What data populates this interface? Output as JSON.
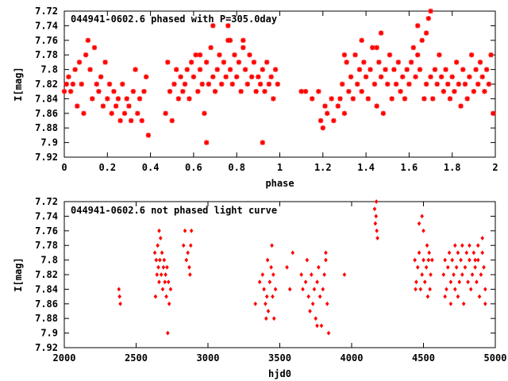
{
  "chart_data": [
    {
      "type": "scatter",
      "title": "044941-0602.6 phased with P=305.0day",
      "xlabel": "phase",
      "ylabel": "I[mag]",
      "xlim": [
        0,
        2
      ],
      "ylim": [
        7.72,
        7.92
      ],
      "y_inverted": true,
      "grid": false,
      "marker": "asterisk",
      "color": "#ff0000",
      "x_ticks": [
        0,
        0.2,
        0.4,
        0.6,
        0.8,
        1,
        1.2,
        1.4,
        1.6,
        1.8,
        2
      ],
      "x_tick_labels": [
        "0",
        "0.2",
        "0.4",
        "0.6",
        "0.8",
        "1",
        "1.2",
        "1.4",
        "1.6",
        "1.8",
        "2"
      ],
      "y_ticks": [
        7.72,
        7.74,
        7.76,
        7.78,
        7.8,
        7.82,
        7.84,
        7.86,
        7.88,
        7.9,
        7.92
      ],
      "y_tick_labels": [
        "7.72",
        "7.74",
        "7.76",
        "7.78",
        "7.8",
        "7.82",
        "7.84",
        "7.86",
        "7.88",
        "7.9",
        "7.92"
      ],
      "points": [
        [
          0.0,
          7.83
        ],
        [
          0.01,
          7.82
        ],
        [
          0.02,
          7.81
        ],
        [
          0.03,
          7.83
        ],
        [
          0.04,
          7.82
        ],
        [
          0.05,
          7.8
        ],
        [
          0.06,
          7.85
        ],
        [
          0.07,
          7.79
        ],
        [
          0.08,
          7.82
        ],
        [
          0.09,
          7.86
        ],
        [
          0.1,
          7.78
        ],
        [
          0.11,
          7.76
        ],
        [
          0.12,
          7.8
        ],
        [
          0.13,
          7.84
        ],
        [
          0.14,
          7.77
        ],
        [
          0.15,
          7.82
        ],
        [
          0.16,
          7.83
        ],
        [
          0.17,
          7.81
        ],
        [
          0.18,
          7.85
        ],
        [
          0.19,
          7.79
        ],
        [
          0.2,
          7.84
        ],
        [
          0.21,
          7.82
        ],
        [
          0.22,
          7.86
        ],
        [
          0.23,
          7.83
        ],
        [
          0.24,
          7.85
        ],
        [
          0.25,
          7.84
        ],
        [
          0.26,
          7.87
        ],
        [
          0.27,
          7.82
        ],
        [
          0.28,
          7.86
        ],
        [
          0.29,
          7.84
        ],
        [
          0.3,
          7.85
        ],
        [
          0.31,
          7.87
        ],
        [
          0.32,
          7.83
        ],
        [
          0.33,
          7.8
        ],
        [
          0.34,
          7.86
        ],
        [
          0.35,
          7.84
        ],
        [
          0.36,
          7.87
        ],
        [
          0.37,
          7.83
        ],
        [
          0.38,
          7.81
        ],
        [
          0.39,
          7.89
        ],
        [
          0.47,
          7.86
        ],
        [
          0.48,
          7.79
        ],
        [
          0.49,
          7.83
        ],
        [
          0.5,
          7.87
        ],
        [
          0.51,
          7.82
        ],
        [
          0.52,
          7.8
        ],
        [
          0.53,
          7.84
        ],
        [
          0.54,
          7.81
        ],
        [
          0.55,
          7.83
        ],
        [
          0.56,
          7.82
        ],
        [
          0.57,
          7.8
        ],
        [
          0.58,
          7.84
        ],
        [
          0.59,
          7.79
        ],
        [
          0.6,
          7.81
        ],
        [
          0.61,
          7.78
        ],
        [
          0.62,
          7.83
        ],
        [
          0.63,
          7.8
        ],
        [
          0.64,
          7.82
        ],
        [
          0.65,
          7.86
        ],
        [
          0.66,
          7.79
        ],
        [
          0.67,
          7.82
        ],
        [
          0.68,
          7.77
        ],
        [
          0.69,
          7.81
        ],
        [
          0.7,
          7.83
        ],
        [
          0.71,
          7.8
        ],
        [
          0.72,
          7.78
        ],
        [
          0.73,
          7.82
        ],
        [
          0.74,
          7.79
        ],
        [
          0.75,
          7.81
        ],
        [
          0.76,
          7.76
        ],
        [
          0.77,
          7.8
        ],
        [
          0.78,
          7.82
        ],
        [
          0.79,
          7.78
        ],
        [
          0.8,
          7.81
        ],
        [
          0.81,
          7.79
        ],
        [
          0.82,
          7.83
        ],
        [
          0.83,
          7.77
        ],
        [
          0.84,
          7.8
        ],
        [
          0.85,
          7.82
        ],
        [
          0.86,
          7.78
        ],
        [
          0.87,
          7.81
        ],
        [
          0.88,
          7.79
        ],
        [
          0.89,
          7.83
        ],
        [
          0.9,
          7.81
        ],
        [
          0.91,
          7.82
        ],
        [
          0.92,
          7.8
        ],
        [
          0.93,
          7.83
        ],
        [
          0.94,
          7.79
        ],
        [
          0.95,
          7.82
        ],
        [
          0.96,
          7.81
        ],
        [
          0.97,
          7.84
        ],
        [
          0.98,
          7.8
        ],
        [
          0.99,
          7.82
        ],
        [
          0.66,
          7.9
        ],
        [
          0.92,
          7.9
        ],
        [
          0.69,
          7.74
        ],
        [
          0.76,
          7.74
        ],
        [
          0.77,
          7.76
        ],
        [
          0.83,
          7.76
        ],
        [
          0.63,
          7.78
        ],
        [
          1.1,
          7.83
        ],
        [
          1.12,
          7.83
        ],
        [
          1.15,
          7.84
        ],
        [
          1.18,
          7.83
        ],
        [
          1.19,
          7.87
        ],
        [
          1.2,
          7.88
        ],
        [
          1.21,
          7.85
        ],
        [
          1.22,
          7.86
        ],
        [
          1.24,
          7.84
        ],
        [
          1.25,
          7.87
        ],
        [
          1.27,
          7.85
        ],
        [
          1.28,
          7.84
        ],
        [
          1.29,
          7.82
        ],
        [
          1.3,
          7.86
        ],
        [
          1.31,
          7.79
        ],
        [
          1.32,
          7.83
        ],
        [
          1.33,
          7.81
        ],
        [
          1.34,
          7.84
        ],
        [
          1.35,
          7.78
        ],
        [
          1.36,
          7.82
        ],
        [
          1.37,
          7.8
        ],
        [
          1.38,
          7.83
        ],
        [
          1.39,
          7.79
        ],
        [
          1.4,
          7.81
        ],
        [
          1.41,
          7.84
        ],
        [
          1.42,
          7.8
        ],
        [
          1.43,
          7.77
        ],
        [
          1.44,
          7.82
        ],
        [
          1.45,
          7.85
        ],
        [
          1.46,
          7.79
        ],
        [
          1.47,
          7.81
        ],
        [
          1.48,
          7.86
        ],
        [
          1.49,
          7.8
        ],
        [
          1.5,
          7.82
        ],
        [
          1.51,
          7.78
        ],
        [
          1.52,
          7.84
        ],
        [
          1.53,
          7.8
        ],
        [
          1.54,
          7.82
        ],
        [
          1.55,
          7.79
        ],
        [
          1.56,
          7.83
        ],
        [
          1.57,
          7.81
        ],
        [
          1.58,
          7.84
        ],
        [
          1.59,
          7.8
        ],
        [
          1.6,
          7.82
        ],
        [
          1.61,
          7.79
        ],
        [
          1.62,
          7.77
        ],
        [
          1.63,
          7.81
        ],
        [
          1.64,
          7.78
        ],
        [
          1.65,
          7.8
        ],
        [
          1.66,
          7.76
        ],
        [
          1.67,
          7.84
        ],
        [
          1.68,
          7.82
        ],
        [
          1.69,
          7.73
        ],
        [
          1.7,
          7.81
        ],
        [
          1.71,
          7.84
        ],
        [
          1.72,
          7.8
        ],
        [
          1.73,
          7.82
        ],
        [
          1.74,
          7.78
        ],
        [
          1.75,
          7.81
        ],
        [
          1.76,
          7.83
        ],
        [
          1.77,
          7.8
        ],
        [
          1.78,
          7.82
        ],
        [
          1.79,
          7.84
        ],
        [
          1.8,
          7.81
        ],
        [
          1.81,
          7.83
        ],
        [
          1.82,
          7.79
        ],
        [
          1.83,
          7.82
        ],
        [
          1.84,
          7.85
        ],
        [
          1.85,
          7.8
        ],
        [
          1.86,
          7.82
        ],
        [
          1.87,
          7.84
        ],
        [
          1.88,
          7.81
        ],
        [
          1.89,
          7.78
        ],
        [
          1.9,
          7.83
        ],
        [
          1.91,
          7.8
        ],
        [
          1.92,
          7.82
        ],
        [
          1.93,
          7.79
        ],
        [
          1.94,
          7.81
        ],
        [
          1.95,
          7.83
        ],
        [
          1.96,
          7.8
        ],
        [
          1.97,
          7.82
        ],
        [
          1.98,
          7.78
        ],
        [
          1.99,
          7.86
        ],
        [
          1.38,
          7.76
        ],
        [
          1.45,
          7.77
        ],
        [
          1.47,
          7.75
        ],
        [
          1.64,
          7.74
        ],
        [
          1.7,
          7.72
        ],
        [
          1.68,
          7.75
        ],
        [
          1.3,
          7.78
        ]
      ]
    },
    {
      "type": "scatter",
      "title": "044941-0602.6 not phased light curve",
      "xlabel": "hjd0",
      "ylabel": "I[mag]",
      "xlim": [
        2000,
        5000
      ],
      "ylim": [
        7.72,
        7.92
      ],
      "y_inverted": true,
      "grid": false,
      "marker": "diamond",
      "color": "#ff0000",
      "x_ticks": [
        2000,
        2500,
        3000,
        3500,
        4000,
        4500,
        5000
      ],
      "x_tick_labels": [
        "2000",
        "2500",
        "3000",
        "3500",
        "4000",
        "4500",
        "5000"
      ],
      "y_ticks": [
        7.72,
        7.74,
        7.76,
        7.78,
        7.8,
        7.82,
        7.84,
        7.86,
        7.88,
        7.9,
        7.92
      ],
      "y_tick_labels": [
        "7.72",
        "7.74",
        "7.76",
        "7.78",
        "7.8",
        "7.82",
        "7.84",
        "7.86",
        "7.88",
        "7.9",
        "7.92"
      ],
      "points": [
        [
          2380,
          7.84
        ],
        [
          2385,
          7.85
        ],
        [
          2390,
          7.86
        ],
        [
          2630,
          7.79
        ],
        [
          2640,
          7.8
        ],
        [
          2645,
          7.82
        ],
        [
          2650,
          7.78
        ],
        [
          2655,
          7.81
        ],
        [
          2660,
          7.83
        ],
        [
          2665,
          7.8
        ],
        [
          2670,
          7.77
        ],
        [
          2675,
          7.82
        ],
        [
          2680,
          7.79
        ],
        [
          2685,
          7.84
        ],
        [
          2690,
          7.81
        ],
        [
          2695,
          7.8
        ],
        [
          2700,
          7.83
        ],
        [
          2705,
          7.82
        ],
        [
          2710,
          7.85
        ],
        [
          2715,
          7.81
        ],
        [
          2720,
          7.9
        ],
        [
          2725,
          7.83
        ],
        [
          2730,
          7.86
        ],
        [
          2740,
          7.84
        ],
        [
          2660,
          7.76
        ],
        [
          2635,
          7.85
        ],
        [
          2830,
          7.78
        ],
        [
          2840,
          7.76
        ],
        [
          2850,
          7.8
        ],
        [
          2860,
          7.79
        ],
        [
          2870,
          7.81
        ],
        [
          2880,
          7.78
        ],
        [
          2885,
          7.76
        ],
        [
          2875,
          7.82
        ],
        [
          3330,
          7.86
        ],
        [
          3360,
          7.83
        ],
        [
          3380,
          7.82
        ],
        [
          3390,
          7.84
        ],
        [
          3400,
          7.86
        ],
        [
          3410,
          7.85
        ],
        [
          3420,
          7.87
        ],
        [
          3430,
          7.83
        ],
        [
          3440,
          7.81
        ],
        [
          3450,
          7.85
        ],
        [
          3460,
          7.88
        ],
        [
          3470,
          7.84
        ],
        [
          3405,
          7.88
        ],
        [
          3415,
          7.8
        ],
        [
          3445,
          7.78
        ],
        [
          3455,
          7.82
        ],
        [
          3550,
          7.81
        ],
        [
          3570,
          7.84
        ],
        [
          3590,
          7.79
        ],
        [
          3650,
          7.82
        ],
        [
          3660,
          7.84
        ],
        [
          3680,
          7.83
        ],
        [
          3700,
          7.85
        ],
        [
          3710,
          7.87
        ],
        [
          3720,
          7.82
        ],
        [
          3730,
          7.86
        ],
        [
          3740,
          7.84
        ],
        [
          3750,
          7.88
        ],
        [
          3760,
          7.83
        ],
        [
          3770,
          7.81
        ],
        [
          3780,
          7.85
        ],
        [
          3790,
          7.89
        ],
        [
          3800,
          7.84
        ],
        [
          3810,
          7.82
        ],
        [
          3820,
          7.8
        ],
        [
          3830,
          7.86
        ],
        [
          3760,
          7.89
        ],
        [
          3840,
          7.9
        ],
        [
          3950,
          7.82
        ],
        [
          3690,
          7.8
        ],
        [
          3820,
          7.79
        ],
        [
          4160,
          7.73
        ],
        [
          4165,
          7.75
        ],
        [
          4170,
          7.74
        ],
        [
          4175,
          7.76
        ],
        [
          4180,
          7.77
        ],
        [
          4172,
          7.72
        ],
        [
          4440,
          7.8
        ],
        [
          4450,
          7.83
        ],
        [
          4460,
          7.81
        ],
        [
          4470,
          7.79
        ],
        [
          4480,
          7.84
        ],
        [
          4490,
          7.82
        ],
        [
          4500,
          7.8
        ],
        [
          4510,
          7.83
        ],
        [
          4520,
          7.81
        ],
        [
          4530,
          7.85
        ],
        [
          4540,
          7.79
        ],
        [
          4550,
          7.82
        ],
        [
          4560,
          7.8
        ],
        [
          4470,
          7.75
        ],
        [
          4490,
          7.74
        ],
        [
          4500,
          7.76
        ],
        [
          4445,
          7.84
        ],
        [
          4525,
          7.78
        ],
        [
          4535,
          7.8
        ],
        [
          4545,
          7.84
        ],
        [
          4640,
          7.82
        ],
        [
          4650,
          7.8
        ],
        [
          4660,
          7.84
        ],
        [
          4670,
          7.81
        ],
        [
          4680,
          7.79
        ],
        [
          4690,
          7.83
        ],
        [
          4700,
          7.8
        ],
        [
          4710,
          7.82
        ],
        [
          4720,
          7.84
        ],
        [
          4730,
          7.81
        ],
        [
          4740,
          7.79
        ],
        [
          4750,
          7.83
        ],
        [
          4760,
          7.8
        ],
        [
          4770,
          7.82
        ],
        [
          4780,
          7.86
        ],
        [
          4790,
          7.81
        ],
        [
          4800,
          7.79
        ],
        [
          4810,
          7.83
        ],
        [
          4820,
          7.8
        ],
        [
          4830,
          7.84
        ],
        [
          4840,
          7.82
        ],
        [
          4850,
          7.79
        ],
        [
          4860,
          7.81
        ],
        [
          4870,
          7.83
        ],
        [
          4880,
          7.8
        ],
        [
          4890,
          7.85
        ],
        [
          4900,
          7.82
        ],
        [
          4910,
          7.79
        ],
        [
          4920,
          7.81
        ],
        [
          4930,
          7.84
        ],
        [
          4690,
          7.86
        ],
        [
          4720,
          7.78
        ],
        [
          4770,
          7.78
        ],
        [
          4820,
          7.78
        ],
        [
          4880,
          7.78
        ],
        [
          4910,
          7.77
        ],
        [
          4740,
          7.85
        ],
        [
          4650,
          7.85
        ],
        [
          4930,
          7.86
        ],
        [
          4860,
          7.8
        ]
      ]
    }
  ]
}
